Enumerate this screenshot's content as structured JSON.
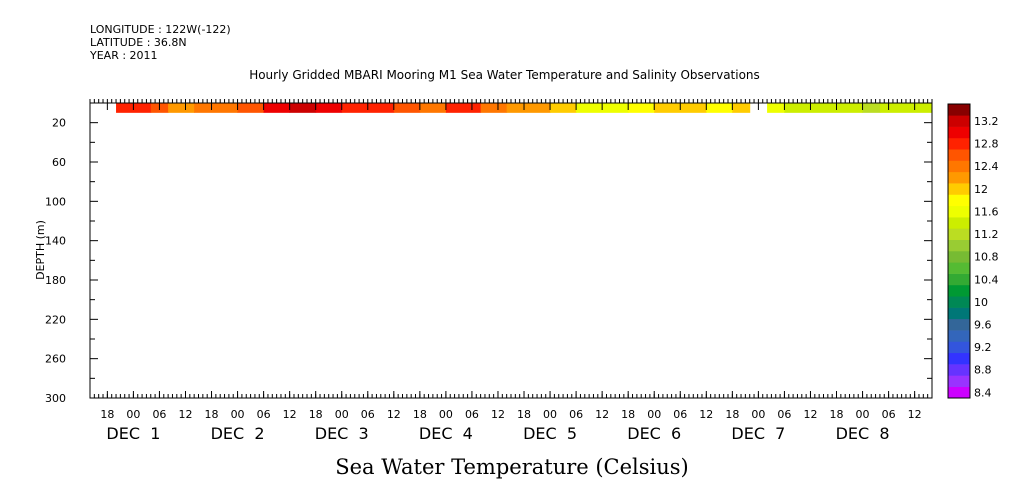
{
  "header": {
    "longitude": "LONGITUDE : 122W(-122)",
    "latitude": "LATITUDE : 36.8N",
    "year": "YEAR : 2011"
  },
  "chart_data": {
    "type": "heatmap",
    "title": "Hourly Gridded MBARI Mooring M1 Sea Water Temperature and Salinity Observations",
    "xlabel": "Sea Water Temperature (Celsius)",
    "ylabel": "DEPTH (m)",
    "y_inverted": true,
    "ylim": [
      300,
      0
    ],
    "yticks": [
      20,
      60,
      100,
      140,
      180,
      220,
      260,
      300
    ],
    "xlim": [
      "2011-11-30T14:00",
      "2011-12-08T16:00"
    ],
    "hour_ticks": [
      {
        "t": "2011-11-30T18:00",
        "label": "18"
      },
      {
        "t": "2011-12-01T00:00",
        "label": "00"
      },
      {
        "t": "2011-12-01T06:00",
        "label": "06"
      },
      {
        "t": "2011-12-01T12:00",
        "label": "12"
      },
      {
        "t": "2011-12-01T18:00",
        "label": "18"
      },
      {
        "t": "2011-12-02T00:00",
        "label": "00"
      },
      {
        "t": "2011-12-02T06:00",
        "label": "06"
      },
      {
        "t": "2011-12-02T12:00",
        "label": "12"
      },
      {
        "t": "2011-12-02T18:00",
        "label": "18"
      },
      {
        "t": "2011-12-03T00:00",
        "label": "00"
      },
      {
        "t": "2011-12-03T06:00",
        "label": "06"
      },
      {
        "t": "2011-12-03T12:00",
        "label": "12"
      },
      {
        "t": "2011-12-03T18:00",
        "label": "18"
      },
      {
        "t": "2011-12-04T00:00",
        "label": "00"
      },
      {
        "t": "2011-12-04T06:00",
        "label": "06"
      },
      {
        "t": "2011-12-04T12:00",
        "label": "12"
      },
      {
        "t": "2011-12-04T18:00",
        "label": "18"
      },
      {
        "t": "2011-12-05T00:00",
        "label": "00"
      },
      {
        "t": "2011-12-05T06:00",
        "label": "06"
      },
      {
        "t": "2011-12-05T12:00",
        "label": "12"
      },
      {
        "t": "2011-12-05T18:00",
        "label": "18"
      },
      {
        "t": "2011-12-06T00:00",
        "label": "00"
      },
      {
        "t": "2011-12-06T06:00",
        "label": "06"
      },
      {
        "t": "2011-12-06T12:00",
        "label": "12"
      },
      {
        "t": "2011-12-06T18:00",
        "label": "18"
      },
      {
        "t": "2011-12-07T00:00",
        "label": "00"
      },
      {
        "t": "2011-12-07T06:00",
        "label": "06"
      },
      {
        "t": "2011-12-07T12:00",
        "label": "12"
      },
      {
        "t": "2011-12-07T18:00",
        "label": "18"
      },
      {
        "t": "2011-12-08T00:00",
        "label": "00"
      },
      {
        "t": "2011-12-08T06:00",
        "label": "06"
      },
      {
        "t": "2011-12-08T12:00",
        "label": "12"
      }
    ],
    "day_labels": [
      {
        "t": "2011-12-01T00:00",
        "label": "DEC  1"
      },
      {
        "t": "2011-12-02T00:00",
        "label": "DEC  2"
      },
      {
        "t": "2011-12-03T00:00",
        "label": "DEC  3"
      },
      {
        "t": "2011-12-04T00:00",
        "label": "DEC  4"
      },
      {
        "t": "2011-12-05T00:00",
        "label": "DEC  5"
      },
      {
        "t": "2011-12-06T00:00",
        "label": "DEC  6"
      },
      {
        "t": "2011-12-07T00:00",
        "label": "DEC  7"
      },
      {
        "t": "2011-12-08T00:00",
        "label": "DEC  8"
      }
    ],
    "depth_band": [
      0,
      10
    ],
    "segments": [
      {
        "start": "2011-11-30T20:00",
        "end": "2011-12-01T04:00",
        "value": 12.9
      },
      {
        "start": "2011-12-01T04:00",
        "end": "2011-12-01T08:00",
        "value": 12.7
      },
      {
        "start": "2011-12-01T08:00",
        "end": "2011-12-01T14:00",
        "value": 12.3
      },
      {
        "start": "2011-12-01T14:00",
        "end": "2011-12-02T00:00",
        "value": 12.5
      },
      {
        "start": "2011-12-02T00:00",
        "end": "2011-12-02T06:00",
        "value": 12.7
      },
      {
        "start": "2011-12-02T06:00",
        "end": "2011-12-02T12:00",
        "value": 13.1
      },
      {
        "start": "2011-12-02T12:00",
        "end": "2011-12-02T18:00",
        "value": 13.3
      },
      {
        "start": "2011-12-02T18:00",
        "end": "2011-12-03T00:00",
        "value": 13.1
      },
      {
        "start": "2011-12-03T00:00",
        "end": "2011-12-03T12:00",
        "value": 12.9
      },
      {
        "start": "2011-12-03T12:00",
        "end": "2011-12-03T18:00",
        "value": 12.7
      },
      {
        "start": "2011-12-03T18:00",
        "end": "2011-12-04T00:00",
        "value": 12.5
      },
      {
        "start": "2011-12-04T00:00",
        "end": "2011-12-04T08:00",
        "value": 12.9
      },
      {
        "start": "2011-12-04T08:00",
        "end": "2011-12-04T14:00",
        "value": 12.5
      },
      {
        "start": "2011-12-04T14:00",
        "end": "2011-12-05T00:00",
        "value": 12.3
      },
      {
        "start": "2011-12-05T00:00",
        "end": "2011-12-05T06:00",
        "value": 12.1
      },
      {
        "start": "2011-12-05T06:00",
        "end": "2011-12-05T18:00",
        "value": 11.7
      },
      {
        "start": "2011-12-05T18:00",
        "end": "2011-12-06T00:00",
        "value": 11.9
      },
      {
        "start": "2011-12-06T00:00",
        "end": "2011-12-06T12:00",
        "value": 12.1
      },
      {
        "start": "2011-12-06T12:00",
        "end": "2011-12-06T18:00",
        "value": 11.9
      },
      {
        "start": "2011-12-06T18:00",
        "end": "2011-12-06T22:00",
        "value": 12.1
      },
      {
        "start": "2011-12-07T02:00",
        "end": "2011-12-07T06:00",
        "value": 11.7
      },
      {
        "start": "2011-12-07T06:00",
        "end": "2011-12-08T00:00",
        "value": 11.5
      },
      {
        "start": "2011-12-08T00:00",
        "end": "2011-12-08T04:00",
        "value": 11.3
      },
      {
        "start": "2011-12-08T04:00",
        "end": "2011-12-08T16:00",
        "value": 11.5
      }
    ],
    "colorbar": {
      "levels": [
        8.4,
        8.6,
        8.8,
        9.0,
        9.2,
        9.4,
        9.6,
        9.8,
        10.0,
        10.2,
        10.4,
        10.6,
        10.8,
        11.0,
        11.2,
        11.4,
        11.6,
        11.8,
        12.0,
        12.2,
        12.4,
        12.6,
        12.8,
        13.0,
        13.2,
        13.4
      ],
      "labels": [
        "8.4",
        "8.8",
        "9.2",
        "9.6",
        "10",
        "10.4",
        "10.8",
        "11.2",
        "11.6",
        "12",
        "12.4",
        "12.8",
        "13.2"
      ],
      "colors": [
        "#cc00ff",
        "#9933ff",
        "#6633ff",
        "#3333ff",
        "#3355dd",
        "#3366bb",
        "#336699",
        "#007777",
        "#008855",
        "#009933",
        "#33aa33",
        "#55bb33",
        "#77bb33",
        "#99cc33",
        "#bbdd22",
        "#ccee00",
        "#eeff00",
        "#ffff00",
        "#ffcc00",
        "#ff9900",
        "#ff7700",
        "#ff5500",
        "#ff2200",
        "#ee0000",
        "#cc0000",
        "#880000"
      ]
    }
  }
}
